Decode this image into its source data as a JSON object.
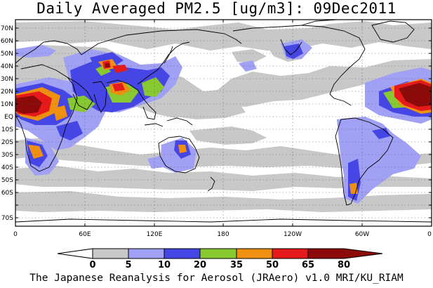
{
  "title": "Daily Averaged PM2.5 [ug/m3]: 09Dec2011",
  "credit": "The Japanese Reanalysis for Aerosol (JRAero) v1.0 MRI/KU_RIAM",
  "lat_labels": [
    "70N",
    "60N",
    "50N",
    "40N",
    "30N",
    "20N",
    "10N",
    "EQ",
    "10S",
    "20S",
    "30S",
    "40S",
    "50S",
    "60S",
    "70S"
  ],
  "lon_labels": [
    "0",
    "60E",
    "120E",
    "180",
    "120W",
    "60W",
    "0"
  ],
  "colorbar": {
    "levels": [
      "0",
      "5",
      "10",
      "20",
      "35",
      "50",
      "65",
      "80"
    ],
    "colors": [
      "#ffffff",
      "#c8c8c8",
      "#a0a0f5",
      "#4646e6",
      "#88c830",
      "#f09010",
      "#e61a1a",
      "#8c0a0a"
    ]
  }
}
